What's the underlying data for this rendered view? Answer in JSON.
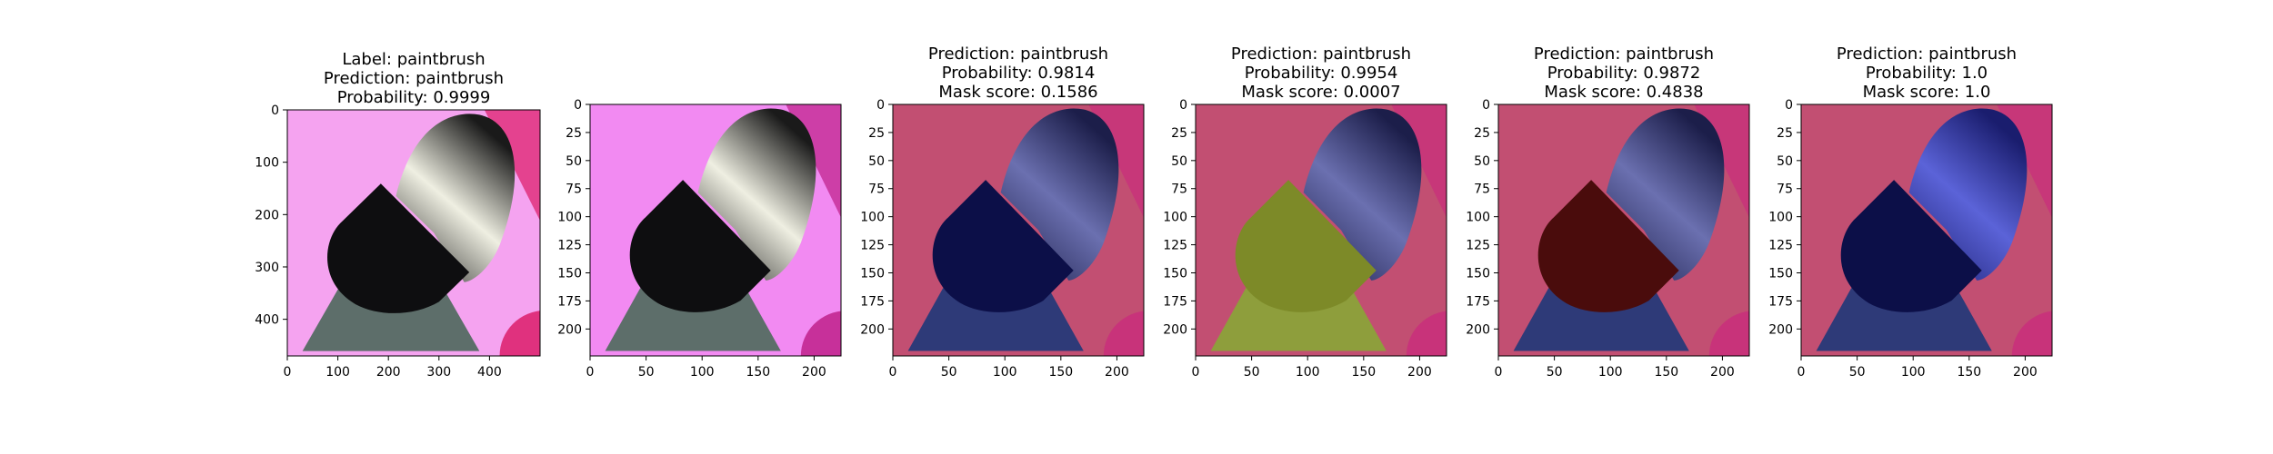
{
  "chart_data": [
    {
      "type": "image",
      "title_lines": [
        "Label: paintbrush",
        "Prediction: paintbrush",
        "Probability: 0.9999"
      ],
      "xlim": [
        0,
        500
      ],
      "ylim": [
        0,
        470
      ],
      "xticks": [
        0,
        100,
        200,
        300,
        400
      ],
      "yticks": [
        0,
        100,
        200,
        300,
        400
      ],
      "overlay": "none",
      "regions": {
        "background": "#f5a3f0",
        "bristle_base": "#1a1a1a",
        "bristle_tip": "#efefe2",
        "handle": "#0e0e10",
        "ferrule": "#5d6e6a",
        "corner": "#e0317e"
      }
    },
    {
      "type": "image",
      "title_lines": [],
      "xlim": [
        0,
        224
      ],
      "ylim": [
        0,
        224
      ],
      "xticks": [
        0,
        50,
        100,
        150,
        200
      ],
      "yticks": [
        0,
        25,
        50,
        75,
        100,
        125,
        150,
        175,
        200
      ],
      "overlay": "none",
      "regions": {
        "background": "#f28af2",
        "bristle_base": "#1a1a1a",
        "bristle_tip": "#efefe2",
        "handle": "#0e0e10",
        "ferrule": "#5d6e6a",
        "corner": "#c7309a"
      }
    },
    {
      "type": "image",
      "title_lines": [
        "Prediction: paintbrush",
        "Probability: 0.9814",
        "Mask score: 0.1586"
      ],
      "xlim": [
        0,
        224
      ],
      "ylim": [
        0,
        224
      ],
      "xticks": [
        0,
        50,
        100,
        150,
        200
      ],
      "yticks": [
        0,
        25,
        50,
        75,
        100,
        125,
        150,
        175,
        200
      ],
      "overlay": "handle-dark",
      "regions": {
        "background": "#c24f72",
        "bristle_base": "#1c1e4a",
        "bristle_tip": "#6b70b0",
        "handle": "#0c0f48",
        "ferrule": "#2e3a78",
        "corner": "#c8337a"
      }
    },
    {
      "type": "image",
      "title_lines": [
        "Prediction: paintbrush",
        "Probability: 0.9954",
        "Mask score: 0.0007"
      ],
      "xlim": [
        0,
        224
      ],
      "ylim": [
        0,
        224
      ],
      "xticks": [
        0,
        50,
        100,
        150,
        200
      ],
      "yticks": [
        0,
        25,
        50,
        75,
        100,
        125,
        150,
        175,
        200
      ],
      "overlay": "handle-olive",
      "regions": {
        "background": "#c24f72",
        "bristle_base": "#1c1e4a",
        "bristle_tip": "#6b70b0",
        "handle": "#7d8a28",
        "ferrule": "#8e9e3c",
        "corner": "#c8337a"
      }
    },
    {
      "type": "image",
      "title_lines": [
        "Prediction: paintbrush",
        "Probability: 0.9872",
        "Mask score: 0.4838"
      ],
      "xlim": [
        0,
        224
      ],
      "ylim": [
        0,
        224
      ],
      "xticks": [
        0,
        50,
        100,
        150,
        200
      ],
      "yticks": [
        0,
        25,
        50,
        75,
        100,
        125,
        150,
        175,
        200
      ],
      "overlay": "handle-red",
      "regions": {
        "background": "#c24f72",
        "bristle_base": "#1c1e4a",
        "bristle_tip": "#6b70b0",
        "handle": "#4a0c0c",
        "ferrule": "#2e3a78",
        "corner": "#c8337a"
      }
    },
    {
      "type": "image",
      "title_lines": [
        "Prediction: paintbrush",
        "Probability: 1.0",
        "Mask score: 1.0"
      ],
      "xlim": [
        0,
        224
      ],
      "ylim": [
        0,
        224
      ],
      "xticks": [
        0,
        50,
        100,
        150,
        200
      ],
      "yticks": [
        0,
        25,
        50,
        75,
        100,
        125,
        150,
        175,
        200
      ],
      "overlay": "bristles-blue",
      "regions": {
        "background": "#c24f72",
        "bristle_base": "#1a1d6e",
        "bristle_tip": "#5b63d8",
        "handle": "#0c0f48",
        "ferrule": "#2e3a78",
        "corner": "#c8337a"
      }
    }
  ]
}
